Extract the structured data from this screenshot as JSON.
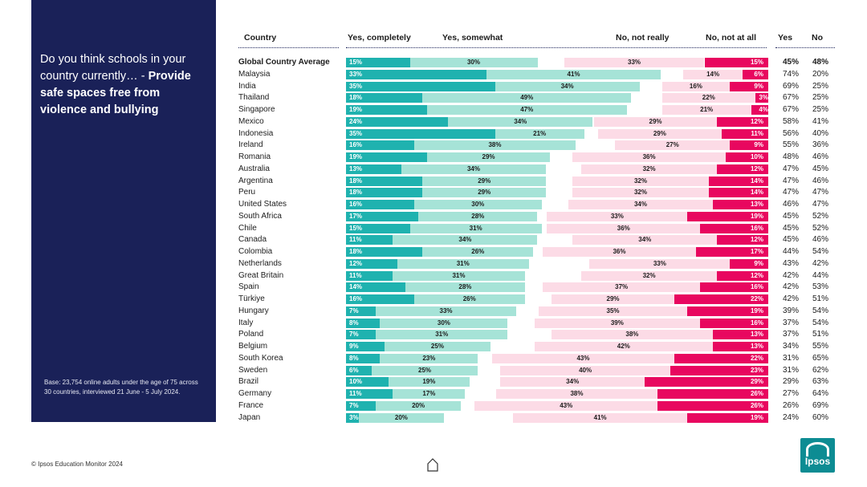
{
  "question": {
    "prefix": "Do you think schools in your country currently… - ",
    "highlight": "Provide safe spaces free from violence and bullying"
  },
  "base_note": "Base: 23,754 online adults under the age of 75 across 30 countries, interviewed 21 June - 5 July 2024.",
  "footer": "© Ipsos Education Monitor 2024",
  "logo_text": "Ipsos",
  "colors": {
    "side_panel": "#1a2158",
    "yes_completely": "#1fb2af",
    "yes_somewhat": "#a6e3d7",
    "no_not_really": "#fcdbe6",
    "no_not_at_all": "#e8075f"
  },
  "headers": {
    "country": "Country",
    "yes_completely": "Yes, completely",
    "yes_somewhat": "Yes, somewhat",
    "no_not_really": "No, not really",
    "no_not_at_all": "No, not at all",
    "yes": "Yes",
    "no": "No"
  },
  "chart_data": {
    "type": "bar",
    "orientation": "horizontal-diverging",
    "title": "Do you think schools in your country currently… - Provide safe spaces free from violence and bullying",
    "value_unit": "%",
    "categories": [
      "Global Country Average",
      "Malaysia",
      "India",
      "Thailand",
      "Singapore",
      "Mexico",
      "Indonesia",
      "Ireland",
      "Romania",
      "Australia",
      "Argentina",
      "Peru",
      "United States",
      "South Africa",
      "Chile",
      "Canada",
      "Colombia",
      "Netherlands",
      "Great Britain",
      "Spain",
      "Türkiye",
      "Hungary",
      "Italy",
      "Poland",
      "Belgium",
      "South Korea",
      "Sweden",
      "Brazil",
      "Germany",
      "France",
      "Japan"
    ],
    "series": [
      {
        "name": "Yes, completely",
        "values": [
          15,
          33,
          35,
          18,
          19,
          24,
          35,
          16,
          19,
          13,
          18,
          18,
          16,
          17,
          15,
          11,
          18,
          12,
          11,
          14,
          16,
          7,
          8,
          7,
          9,
          8,
          6,
          10,
          11,
          7,
          3
        ]
      },
      {
        "name": "Yes, somewhat",
        "values": [
          30,
          41,
          34,
          49,
          47,
          34,
          21,
          38,
          29,
          34,
          29,
          29,
          30,
          28,
          31,
          34,
          26,
          31,
          31,
          28,
          26,
          33,
          30,
          31,
          25,
          23,
          25,
          19,
          17,
          20,
          20
        ]
      },
      {
        "name": "No, not really",
        "values": [
          33,
          14,
          16,
          22,
          21,
          29,
          29,
          27,
          36,
          32,
          32,
          32,
          34,
          33,
          36,
          34,
          36,
          33,
          32,
          37,
          29,
          35,
          39,
          38,
          42,
          43,
          40,
          34,
          38,
          43,
          41
        ]
      },
      {
        "name": "No, not at all",
        "values": [
          15,
          6,
          9,
          3,
          4,
          12,
          11,
          9,
          10,
          12,
          14,
          14,
          13,
          19,
          16,
          12,
          17,
          9,
          12,
          16,
          22,
          19,
          16,
          13,
          13,
          22,
          23,
          29,
          26,
          26,
          19
        ]
      }
    ],
    "totals": {
      "yes": [
        45,
        74,
        69,
        67,
        67,
        58,
        56,
        55,
        48,
        47,
        47,
        47,
        46,
        45,
        45,
        45,
        44,
        43,
        42,
        42,
        42,
        39,
        37,
        37,
        34,
        31,
        31,
        29,
        27,
        26,
        24
      ],
      "no": [
        48,
        20,
        25,
        25,
        25,
        41,
        40,
        36,
        46,
        45,
        46,
        47,
        47,
        52,
        52,
        46,
        54,
        42,
        44,
        53,
        51,
        54,
        54,
        51,
        55,
        65,
        62,
        63,
        64,
        69,
        60
      ]
    }
  }
}
